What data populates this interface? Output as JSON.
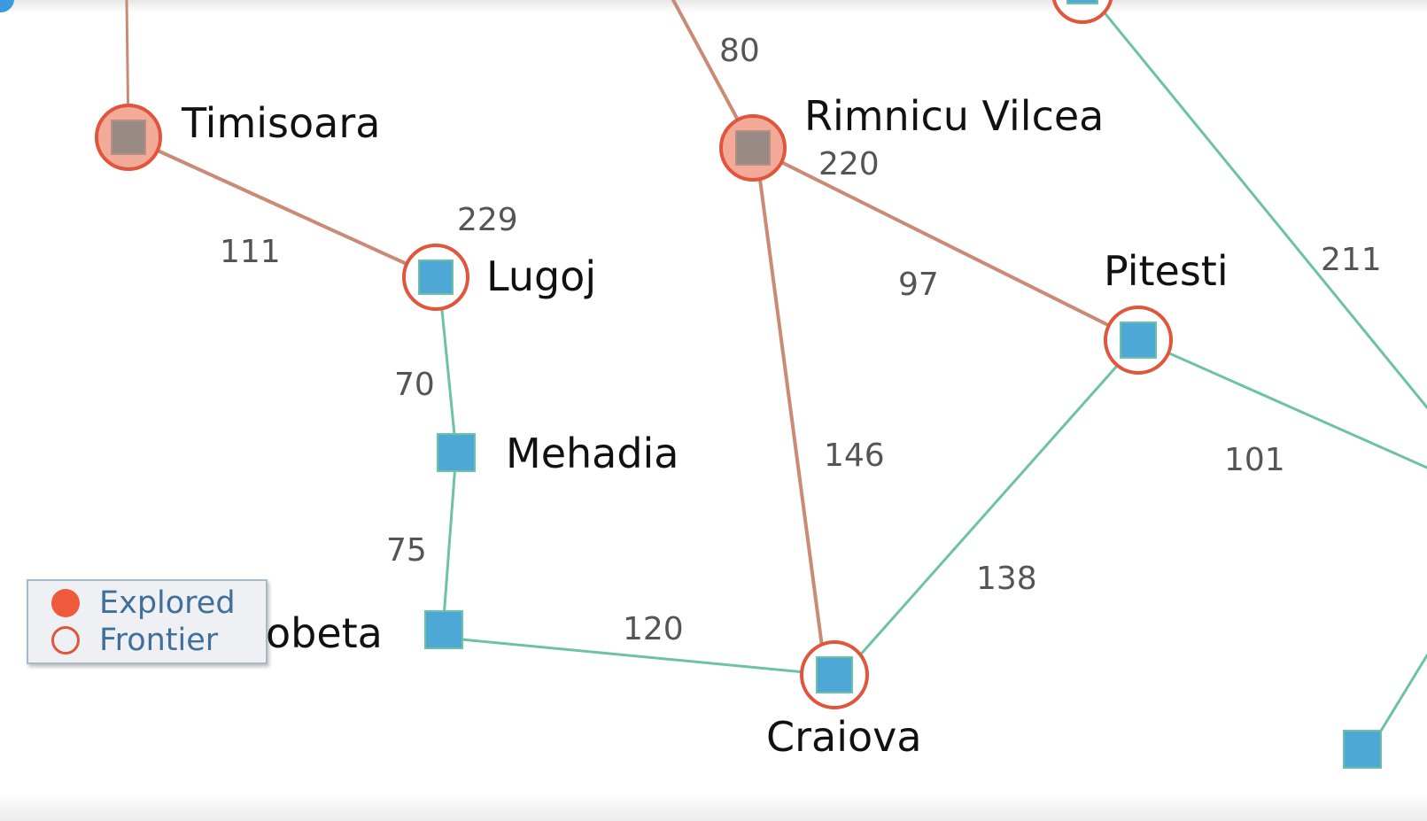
{
  "colors": {
    "explored_edge": "#c98b74",
    "frontier_edge": "#6dc2a6",
    "node_ring": "#e0553b",
    "explored_fill": "#f3aa98",
    "node_square_explored": "#9a8a86",
    "node_square_frontier": "#4ea8d6",
    "legend_text": "#3f6f9a"
  },
  "cities": [
    {
      "id": "timisoara",
      "label": "Timisoara",
      "state": "explored"
    },
    {
      "id": "rimnicu",
      "label": "Rimnicu Vilcea",
      "state": "explored"
    },
    {
      "id": "lugoj",
      "label": "Lugoj",
      "state": "frontier"
    },
    {
      "id": "pitesti",
      "label": "Pitesti",
      "state": "frontier"
    },
    {
      "id": "craiova",
      "label": "Craiova",
      "state": "frontier"
    },
    {
      "id": "mehadia",
      "label": "Mehadia",
      "state": "unvisited"
    },
    {
      "id": "drobeta",
      "label": "obeta",
      "state": "unvisited"
    }
  ],
  "edges": [
    {
      "from": "timisoara",
      "to": "lugoj",
      "distance": "111",
      "type": "explored"
    },
    {
      "from": "lugoj",
      "to": "mehadia",
      "distance": "70",
      "type": "frontier"
    },
    {
      "from": "mehadia",
      "to": "drobeta",
      "distance": "75",
      "type": "frontier"
    },
    {
      "from": "drobeta",
      "to": "craiova",
      "distance": "120",
      "type": "frontier"
    },
    {
      "from": "rimnicu",
      "to": "pitesti",
      "distance": "97",
      "type": "explored"
    },
    {
      "from": "rimnicu",
      "to": "craiova",
      "distance": "146",
      "type": "explored"
    },
    {
      "from": "pitesti",
      "to": "craiova",
      "distance": "138",
      "type": "frontier"
    },
    {
      "from": "pitesti",
      "to": "offscreen_right",
      "distance": "101",
      "type": "frontier"
    },
    {
      "from": "offscreen_top_right",
      "to": "offscreen_right_edge",
      "distance": "211",
      "type": "frontier"
    },
    {
      "from": "offscreen_top",
      "to": "rimnicu",
      "distance": "80",
      "type": "explored"
    },
    {
      "from": "offscreen_top_left",
      "to": "timisoara",
      "distance": "",
      "type": "explored"
    }
  ],
  "path_costs": {
    "lugoj": "229",
    "rimnicu": "220"
  },
  "legend": {
    "explored_label": "Explored",
    "frontier_label": "Frontier"
  }
}
